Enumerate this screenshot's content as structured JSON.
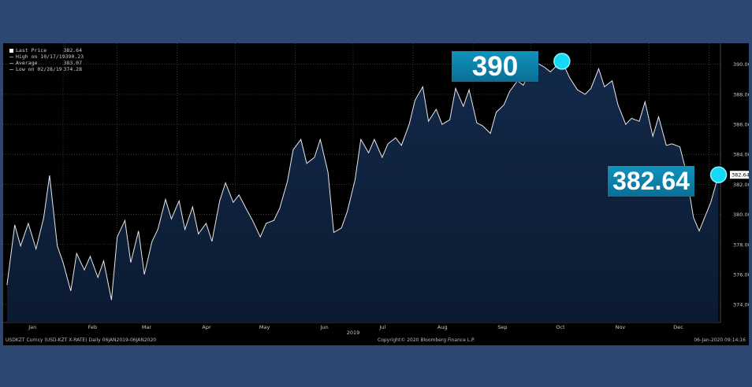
{
  "legend": {
    "last_price_label": "Last Price",
    "last_price_value": "382.64",
    "high_label": "High on 10/17/19",
    "high_value": "390.23",
    "average_label": "Average",
    "average_value": "383.07",
    "low_label": "Low on 02/28/19",
    "low_value": "374.28"
  },
  "footer": {
    "left": "USDKZT Curncy (USD-KZT X-RATE)  Daily 06JAN2019-06JAN2020",
    "center": "Copyright© 2020 Bloomberg Finance L.P.",
    "right": "06-Jan-2020 09:14:16"
  },
  "callouts": {
    "peak": "390",
    "last": "382.64"
  },
  "last_marker": "382.64",
  "colors": {
    "background": "#2c4770",
    "plot": "#000000",
    "line": "#ffffff",
    "area": "#0f1f38",
    "callout": "#0f8fb8",
    "dot": "#16d8f5"
  },
  "chart_data": {
    "type": "area",
    "title": "",
    "xlabel": "",
    "ylabel": "",
    "year_label": "2019",
    "months": [
      "Jan",
      "Feb",
      "Mar",
      "Apr",
      "May",
      "Jun",
      "Jul",
      "Aug",
      "Sep",
      "Oct",
      "Nov",
      "Dec"
    ],
    "y_ticks": [
      "374.00",
      "376.00",
      "378.00",
      "380.00",
      "382.00",
      "384.00",
      "386.00",
      "388.00",
      "390.00"
    ],
    "ylim": [
      372.8,
      391.4
    ],
    "grid": true,
    "legend_position": "top-left",
    "x_dates": [
      "2019-01-03",
      "2019-01-07",
      "2019-01-10",
      "2019-01-14",
      "2019-01-18",
      "2019-01-22",
      "2019-01-25",
      "2019-01-29",
      "2019-02-01",
      "2019-02-05",
      "2019-02-08",
      "2019-02-12",
      "2019-02-15",
      "2019-02-19",
      "2019-02-22",
      "2019-02-26",
      "2019-03-01",
      "2019-03-05",
      "2019-03-08",
      "2019-03-12",
      "2019-03-15",
      "2019-03-19",
      "2019-03-22",
      "2019-03-26",
      "2019-03-29",
      "2019-04-02",
      "2019-04-05",
      "2019-04-09",
      "2019-04-12",
      "2019-04-16",
      "2019-04-19",
      "2019-04-23",
      "2019-04-26",
      "2019-04-30",
      "2019-05-03",
      "2019-05-07",
      "2019-05-10",
      "2019-05-14",
      "2019-05-17",
      "2019-05-21",
      "2019-05-24",
      "2019-05-28",
      "2019-05-31",
      "2019-06-04",
      "2019-06-07",
      "2019-06-11",
      "2019-06-14",
      "2019-06-18",
      "2019-06-21",
      "2019-06-25",
      "2019-06-28",
      "2019-07-02",
      "2019-07-05",
      "2019-07-09",
      "2019-07-12",
      "2019-07-16",
      "2019-07-19",
      "2019-07-23",
      "2019-07-26",
      "2019-07-30",
      "2019-08-02",
      "2019-08-06",
      "2019-08-09",
      "2019-08-13",
      "2019-08-16",
      "2019-08-20",
      "2019-08-23",
      "2019-08-27",
      "2019-08-30",
      "2019-09-03",
      "2019-09-06",
      "2019-09-10",
      "2019-09-13",
      "2019-09-17",
      "2019-09-20",
      "2019-09-24",
      "2019-09-27",
      "2019-10-01",
      "2019-10-04",
      "2019-10-08",
      "2019-10-11",
      "2019-10-15",
      "2019-10-17",
      "2019-10-21",
      "2019-10-25",
      "2019-10-29",
      "2019-11-01",
      "2019-11-05",
      "2019-11-08",
      "2019-11-12",
      "2019-11-15",
      "2019-11-19",
      "2019-11-22",
      "2019-11-26",
      "2019-11-29",
      "2019-12-03",
      "2019-12-06",
      "2019-12-10",
      "2019-12-13",
      "2019-12-17",
      "2019-12-20",
      "2019-12-24",
      "2019-12-27",
      "2020-01-02",
      "2020-01-06"
    ],
    "series": [
      {
        "values": [
          375.3,
          379.3,
          377.9,
          379.4,
          377.7,
          379.8,
          382.6,
          377.9,
          376.8,
          374.9,
          377.4,
          376.3,
          377.2,
          375.8,
          376.9,
          374.3,
          378.5,
          379.6,
          376.8,
          378.9,
          376.0,
          378.2,
          379.0,
          381.0,
          379.7,
          380.9,
          379.0,
          380.5,
          378.7,
          379.4,
          378.2,
          380.9,
          382.1,
          380.8,
          381.3,
          380.3,
          379.6,
          378.5,
          379.4,
          379.6,
          380.4,
          382.2,
          384.3,
          385.0,
          383.4,
          383.8,
          385.0,
          382.8,
          378.8,
          379.1,
          380.2,
          382.3,
          385.0,
          384.1,
          385.0,
          383.8,
          384.7,
          385.1,
          384.6,
          386.0,
          387.6,
          388.5,
          386.2,
          387.0,
          386.0,
          386.3,
          388.4,
          387.2,
          388.3,
          386.1,
          385.9,
          385.4,
          386.8,
          387.3,
          388.2,
          388.9,
          388.6,
          389.6,
          390.1,
          389.8,
          389.5,
          390.0,
          390.2,
          389.1,
          388.3,
          388.0,
          388.4,
          389.7,
          388.5,
          388.9,
          387.3,
          386.0,
          386.4,
          386.2,
          387.5,
          385.2,
          386.5,
          384.6,
          384.7,
          384.5,
          383.0,
          379.8,
          378.9,
          380.8,
          382.64
        ]
      }
    ]
  }
}
